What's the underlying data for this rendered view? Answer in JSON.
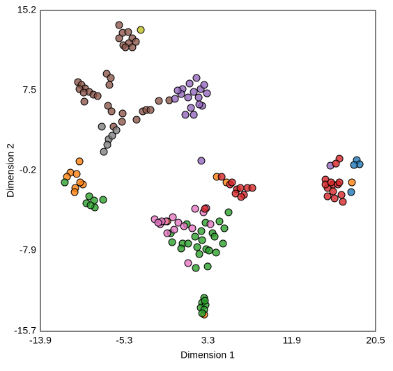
{
  "chart_data": {
    "type": "scatter",
    "x_label": "Dimension 1",
    "y_label": "Dimension 2",
    "xlim": [
      -13.9,
      20.5
    ],
    "ylim": [
      -15.7,
      15.2
    ],
    "xticks": [
      -13.9,
      -5.3,
      3.3,
      11.9,
      20.5
    ],
    "yticks": [
      -15.7,
      -7.9,
      -0.2,
      7.5,
      15.2
    ],
    "grid": false,
    "series": [
      {
        "color": "#8c564b",
        "x": [
          -5.82,
          -5.46,
          -4.89,
          -4.46,
          -5.39,
          -4.82,
          -4.1,
          -5.82,
          -5.17,
          -4.46,
          -10.04,
          -9.68,
          -9.32,
          -8.89,
          -8.46,
          -8.03,
          -9.89,
          -9.46,
          -9.39,
          -6.82,
          -7.1,
          -6.68,
          -6.96,
          -6.6,
          -5.46,
          -5.53,
          -6.39,
          -4.03,
          -3.39,
          -3.03,
          -2.6,
          -1.74,
          -0.67
        ],
        "values": [
          13.79,
          13.05,
          13.12,
          12.52,
          11.85,
          12.05,
          12.18,
          12.52,
          11.65,
          11.65,
          8.3,
          8.03,
          7.69,
          7.36,
          7.09,
          6.96,
          7.63,
          7.29,
          6.42,
          8.03,
          9.1,
          8.7,
          6.02,
          5.48,
          5.28,
          4.48,
          4.01,
          4.68,
          5.48,
          5.62,
          5.62,
          6.49,
          6.55
        ]
      },
      {
        "color": "#bcbd22",
        "x": [
          -3.6
        ],
        "values": [
          13.32
        ]
      },
      {
        "color": "#7f7f7f",
        "x": [
          -7.6,
          -6.89,
          -7.39,
          -6.53,
          -6.1,
          -7.03
        ],
        "values": [
          4.01,
          2.8,
          1.59,
          3.14,
          3.67,
          2.26
        ]
      },
      {
        "color": "#9467bd",
        "x": [
          1.41,
          0.69,
          1.84,
          2.55,
          1.26,
          2.34,
          0.55,
          0.19,
          0.98,
          1.84,
          2.7,
          2.12,
          2.91,
          -0.09,
          2.41,
          1.55,
          3.2,
          15.86,
          2.62
        ],
        "values": [
          8.16,
          7.63,
          7.36,
          7.63,
          6.82,
          6.82,
          7.16,
          7.49,
          5.15,
          5.15,
          6.02,
          8.7,
          8.03,
          6.69,
          6.15,
          5.82,
          7.22,
          0.25,
          0.72
        ]
      },
      {
        "color": "#ff7f0e",
        "x": [
          -10.82,
          -9.89,
          -10.18,
          -11.18,
          -9.54,
          -10.32,
          -9.82,
          -10.39,
          4.2,
          5.2,
          18.07,
          2.91,
          -0.88
        ],
        "values": [
          -0.42,
          0.66,
          -0.55,
          -0.82,
          -1.56,
          -1.89,
          -1.36,
          -2.29,
          -0.82,
          -1.36,
          -1.36,
          -14.09,
          -5.11
        ]
      },
      {
        "color": "#2ca02c",
        "x": [
          -11.4,
          -8.89,
          -8.39,
          -7.46,
          -9.18,
          -8.32,
          -8.75,
          5.41,
          4.48,
          4.98,
          3.77,
          2.7,
          1.98,
          0.69,
          -0.38,
          -0.52,
          0.55,
          2.19,
          3.12,
          1.26,
          2.62,
          4.84,
          4.13,
          3.27,
          2.05,
          2.41,
          3.41,
          1.12,
          3.05,
          3.98,
          2.91,
          2.7,
          3.05,
          2.55,
          2.91,
          2.7,
          2.98
        ],
        "values": [
          -1.36,
          -2.7,
          -3.1,
          -3.03,
          -3.37,
          -3.77,
          -3.57,
          -4.24,
          -5.11,
          -5.78,
          -6.25,
          -6.92,
          -6.58,
          -7.25,
          -7.12,
          -6.25,
          -7.72,
          -7.59,
          -7.79,
          -7.25,
          -6.05,
          -7.25,
          -8.12,
          -9.46,
          -9.6,
          -8.26,
          -7.92,
          -5.38,
          -5.24,
          -6.58,
          -12.48,
          -12.95,
          -13.15,
          -13.42,
          -13.62,
          -13.96,
          -12.75
        ]
      },
      {
        "color": "#e377c2",
        "x": [
          -2.17,
          -1.6,
          -1.02,
          -0.31,
          0.26,
          0.84,
          1.69,
          -0.17,
          -0.88,
          3.12,
          1.98,
          3.55,
          1.26,
          -1.45,
          2.84,
          -1.81
        ],
        "values": [
          -4.91,
          -5.38,
          -5.11,
          -4.71,
          -5.24,
          -5.58,
          -5.78,
          -5.91,
          -6.25,
          -3.84,
          -3.9,
          -5.38,
          -9.13,
          -5.11,
          -4.24,
          -5.24
        ]
      },
      {
        "color": "#d62728",
        "x": [
          5.56,
          6.27,
          6.63,
          6.99,
          7.34,
          7.85,
          6.13,
          4.7,
          5.77,
          6.7,
          16.79,
          16.43,
          15.36,
          15.57,
          16.14,
          16.64,
          16.14,
          15.57,
          17.0,
          16.29,
          17.14,
          15.36,
          16.79,
          15.93,
          2.98
        ],
        "values": [
          -1.56,
          -2.03,
          -1.89,
          -2.56,
          -1.89,
          -1.89,
          -2.43,
          -0.82,
          -1.36,
          -2.76,
          0.92,
          0.45,
          -1.09,
          -1.89,
          -1.56,
          -1.56,
          -2.23,
          -2.7,
          -2.56,
          -2.9,
          -3.23,
          -1.56,
          -1.36,
          -1.36,
          -3.9
        ]
      },
      {
        "color": "#1f77b4",
        "x": [
          18.57,
          18.86,
          18.29,
          18.0
        ],
        "values": [
          0.79,
          0.39,
          0.32,
          -2.29
        ]
      }
    ]
  }
}
